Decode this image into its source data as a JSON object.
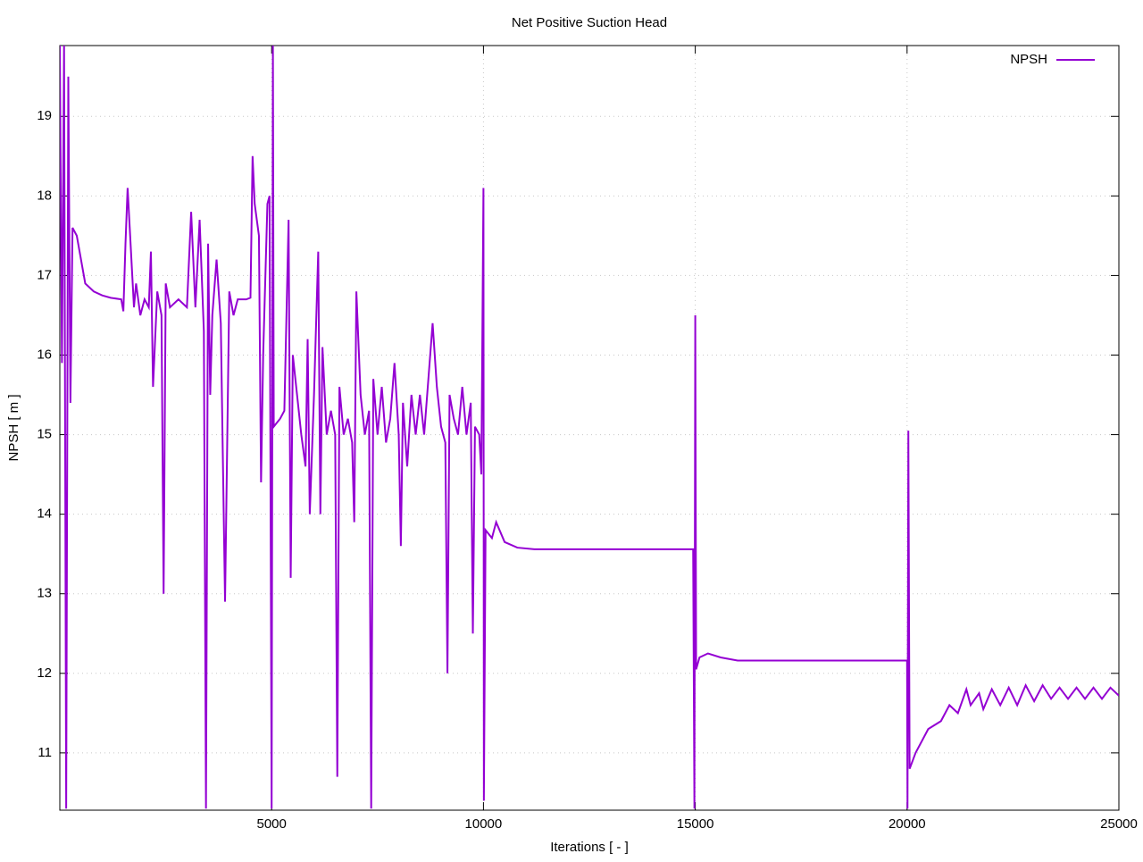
{
  "chart_data": {
    "type": "line",
    "title": "Net Positive Suction Head",
    "x_label": "Iterations [ - ]",
    "y_label": "NPSH [ m ]",
    "xlim": [
      0,
      25000
    ],
    "xticks": [
      5000,
      10000,
      15000,
      20000,
      25000
    ],
    "ylim": [
      10.28,
      19.89
    ],
    "yticks": [
      11,
      12,
      13,
      14,
      15,
      16,
      17,
      18,
      19
    ],
    "grid": true,
    "legend": "top-right",
    "series": [
      {
        "name": "NPSH",
        "color": "#9400d3",
        "x": [
          0,
          50,
          100,
          150,
          200,
          250,
          300,
          400,
          600,
          800,
          1000,
          1200,
          1450,
          1500,
          1550,
          1600,
          1650,
          1700,
          1750,
          1800,
          1900,
          2000,
          2100,
          2150,
          2200,
          2300,
          2400,
          2450,
          2500,
          2600,
          2800,
          3000,
          3100,
          3200,
          3300,
          3400,
          3450,
          3500,
          3550,
          3600,
          3700,
          3800,
          3900,
          4000,
          4100,
          4200,
          4400,
          4500,
          4550,
          4600,
          4700,
          4750,
          4800,
          4900,
          4950,
          5000,
          5030,
          5050,
          5200,
          5300,
          5400,
          5450,
          5500,
          5600,
          5700,
          5800,
          5850,
          5900,
          6000,
          6100,
          6150,
          6200,
          6300,
          6400,
          6500,
          6550,
          6600,
          6700,
          6800,
          6900,
          6950,
          7000,
          7100,
          7200,
          7300,
          7350,
          7400,
          7500,
          7600,
          7700,
          7800,
          7900,
          8000,
          8050,
          8100,
          8200,
          8300,
          8400,
          8500,
          8600,
          8700,
          8800,
          8900,
          9000,
          9100,
          9150,
          9200,
          9300,
          9400,
          9500,
          9600,
          9700,
          9750,
          9800,
          9900,
          9950,
          10000,
          10010,
          10050,
          10200,
          10300,
          10500,
          10800,
          11200,
          14950,
          14980,
          15000,
          15020,
          15100,
          15300,
          15600,
          15900,
          16000,
          20000,
          20010,
          20030,
          20060,
          20200,
          20500,
          20800,
          21000,
          21200,
          21400,
          21500,
          21700,
          21800,
          22000,
          22200,
          22400,
          22600,
          22800,
          23000,
          23200,
          23400,
          23600,
          23800,
          24000,
          24200,
          24400,
          24600,
          24800,
          25000
        ],
        "values": [
          19.89,
          15.9,
          19.89,
          10.3,
          19.5,
          15.4,
          17.6,
          17.5,
          16.9,
          16.8,
          16.75,
          16.72,
          16.7,
          16.55,
          17.4,
          18.1,
          17.6,
          17.1,
          16.6,
          16.9,
          16.5,
          16.7,
          16.6,
          17.3,
          15.6,
          16.8,
          16.5,
          13.0,
          16.9,
          16.6,
          16.7,
          16.6,
          17.8,
          16.6,
          17.7,
          16.3,
          10.3,
          17.4,
          15.5,
          16.5,
          17.2,
          16.4,
          12.9,
          16.8,
          16.5,
          16.7,
          16.7,
          16.72,
          18.5,
          17.9,
          17.5,
          14.4,
          16.0,
          17.9,
          18.0,
          10.3,
          19.89,
          15.1,
          15.2,
          15.3,
          17.7,
          13.2,
          16.0,
          15.5,
          15.0,
          14.6,
          16.2,
          14.0,
          15.5,
          17.3,
          14.0,
          16.1,
          15.0,
          15.3,
          15.0,
          10.7,
          15.6,
          15.0,
          15.2,
          14.9,
          13.9,
          16.8,
          15.5,
          15.0,
          15.3,
          10.3,
          15.7,
          15.0,
          15.6,
          14.9,
          15.2,
          15.9,
          15.0,
          13.6,
          15.4,
          14.6,
          15.5,
          15.0,
          15.5,
          15.0,
          15.7,
          16.4,
          15.6,
          15.1,
          14.9,
          12.0,
          15.5,
          15.2,
          15.0,
          15.6,
          15.0,
          15.4,
          12.5,
          15.1,
          15.0,
          14.5,
          18.1,
          10.4,
          13.8,
          13.7,
          13.9,
          13.65,
          13.58,
          13.56,
          13.56,
          10.3,
          16.5,
          12.05,
          12.2,
          12.25,
          12.2,
          12.17,
          12.16,
          12.16,
          10.3,
          15.05,
          10.8,
          11.0,
          11.3,
          11.4,
          11.6,
          11.5,
          11.8,
          11.6,
          11.75,
          11.55,
          11.8,
          11.6,
          11.82,
          11.6,
          11.85,
          11.65,
          11.85,
          11.68,
          11.82,
          11.68,
          11.82,
          11.68,
          11.82,
          11.68,
          11.82,
          11.72
        ]
      }
    ]
  }
}
